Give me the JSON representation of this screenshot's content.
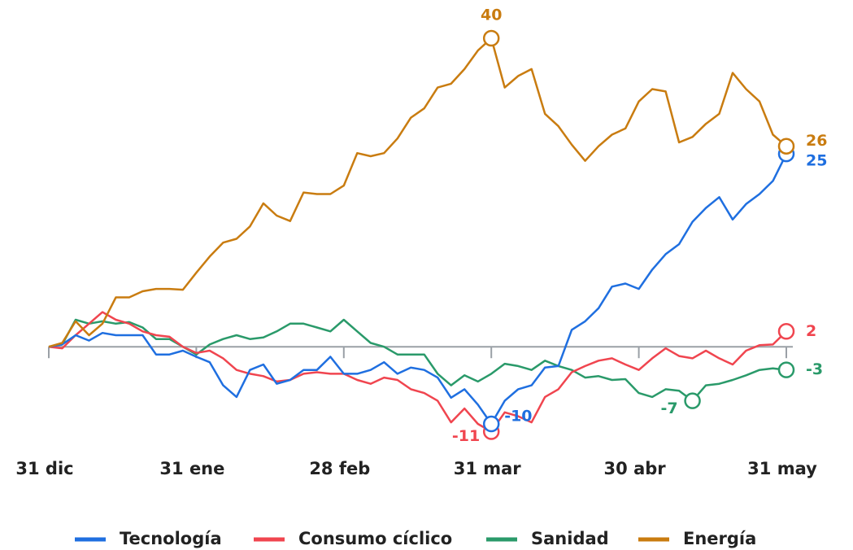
{
  "chart_data": {
    "type": "line",
    "categories": [
      "31 dic",
      null,
      null,
      null,
      null,
      null,
      null,
      null,
      null,
      null,
      null,
      "31 ene",
      null,
      null,
      null,
      null,
      null,
      null,
      null,
      null,
      null,
      null,
      "28 feb",
      null,
      null,
      null,
      null,
      null,
      null,
      null,
      null,
      null,
      null,
      "31 mar",
      null,
      null,
      null,
      null,
      null,
      null,
      null,
      null,
      null,
      null,
      "30 abr",
      null,
      null,
      null,
      null,
      null,
      null,
      null,
      null,
      null,
      null,
      "31 may"
    ],
    "ylim": [
      -12,
      42
    ],
    "series": [
      {
        "name": "Tecnología",
        "color": "#1f6fe0",
        "highlights": [
          33,
          55
        ],
        "values": [
          0,
          0.3,
          1.5,
          0.8,
          1.8,
          1.5,
          1.5,
          1.5,
          -1,
          -1,
          -0.5,
          -1.3,
          -2,
          -5,
          -6.5,
          -3,
          -2.3,
          -4.8,
          -4.3,
          -3,
          -3,
          -1.3,
          -3.5,
          -3.5,
          -3,
          -2,
          -3.5,
          -2.7,
          -3,
          -4,
          -6.6,
          -5.5,
          -7.5,
          -10,
          -7,
          -5.5,
          -5,
          -2.7,
          -2.5,
          2.2,
          3.3,
          5,
          7.8,
          8.2,
          7.5,
          10,
          12,
          13.3,
          16.2,
          18,
          19.4,
          16.5,
          18.5,
          19.8,
          21.5,
          25
        ]
      },
      {
        "name": "Consumo cíclico",
        "color": "#f0454f",
        "highlights": [
          33,
          55
        ],
        "values": [
          0,
          -0.2,
          1.5,
          3,
          4.5,
          3.5,
          3,
          2,
          1.5,
          1.3,
          0,
          -0.8,
          -0.5,
          -1.5,
          -3,
          -3.5,
          -3.8,
          -4.5,
          -4.3,
          -3.5,
          -3.3,
          -3.5,
          -3.5,
          -4.3,
          -4.8,
          -4,
          -4.3,
          -5.5,
          -6,
          -7,
          -9.8,
          -8,
          -10,
          -11,
          -8.5,
          -9,
          -9.8,
          -6.5,
          -5.5,
          -3.3,
          -2.5,
          -1.8,
          -1.5,
          -2.3,
          -3,
          -1.5,
          -0.2,
          -1.2,
          -1.5,
          -0.5,
          -1.5,
          -2.3,
          -0.5,
          0.2,
          0.3,
          2
        ]
      },
      {
        "name": "Sanidad",
        "color": "#2a9a6a",
        "highlights": [
          48,
          55
        ],
        "values": [
          0,
          0.3,
          3.5,
          3,
          3.3,
          3,
          3.2,
          2.5,
          1,
          1,
          0,
          -1,
          0.3,
          1,
          1.5,
          1,
          1.2,
          2,
          3,
          3,
          2.5,
          2,
          3.5,
          2,
          0.5,
          0,
          -1,
          -1,
          -1,
          -3.5,
          -5,
          -3.7,
          -4.5,
          -3.5,
          -2.2,
          -2.5,
          -3,
          -1.8,
          -2.5,
          -3,
          -4,
          -3.8,
          -4.3,
          -4.2,
          -6,
          -6.5,
          -5.5,
          -5.7,
          -7,
          -5,
          -4.8,
          -4.3,
          -3.7,
          -3,
          -2.8,
          -3
        ]
      },
      {
        "name": "Energía",
        "color": "#c97c10",
        "highlights": [
          33,
          55
        ],
        "values": [
          0,
          0.5,
          3.3,
          1.5,
          3,
          6.4,
          6.4,
          7.2,
          7.5,
          7.5,
          7.4,
          9.6,
          11.7,
          13.5,
          14,
          15.6,
          18.6,
          17,
          16.3,
          20,
          19.8,
          19.8,
          20.9,
          25.1,
          24.7,
          25.1,
          27,
          29.7,
          30.9,
          33.6,
          34.1,
          36,
          38.4,
          40,
          33.6,
          35.1,
          36,
          30.2,
          28.6,
          26.2,
          24.1,
          26,
          27.5,
          28.3,
          31.8,
          33.4,
          33.1,
          26.5,
          27.2,
          28.9,
          30.2,
          35.5,
          33.4,
          31.8,
          27.5,
          26
        ]
      }
    ]
  }
}
